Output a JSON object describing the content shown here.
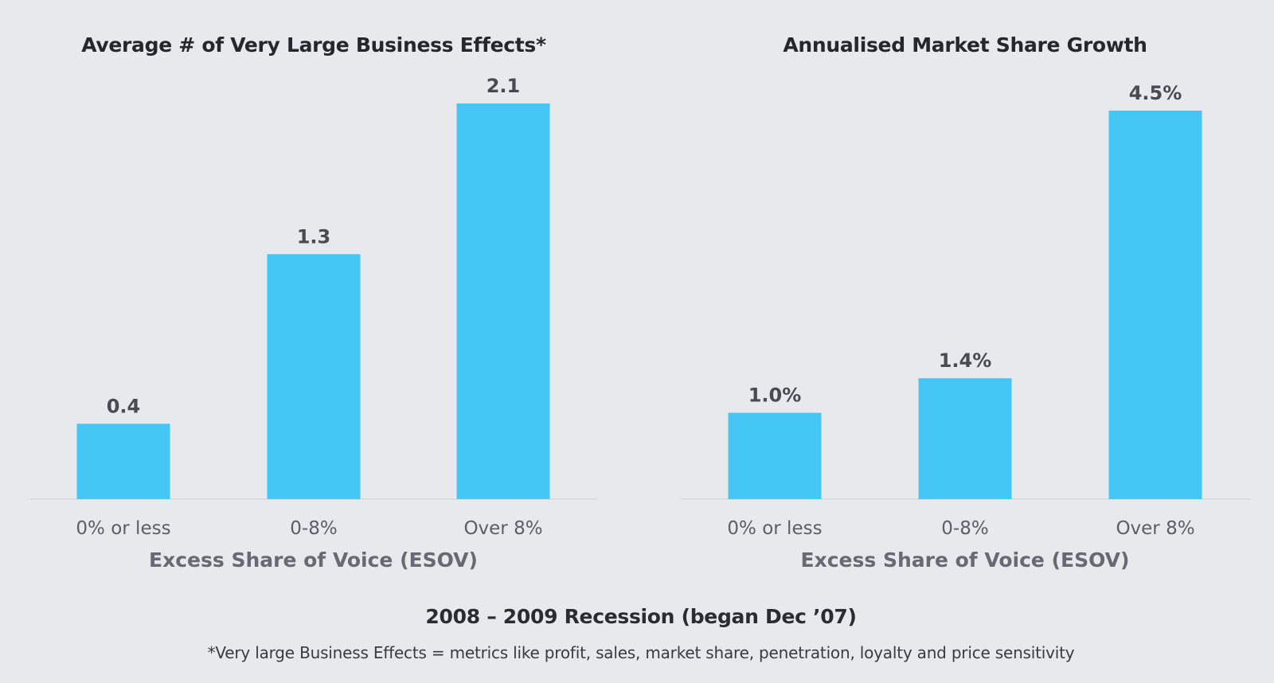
{
  "chart_data": [
    {
      "type": "bar",
      "title": "Average # of Very Large Business Effects*",
      "categories": [
        "0% or less",
        "0-8%",
        "Over 8%"
      ],
      "values": [
        0.4,
        1.3,
        2.1
      ],
      "value_labels": [
        "0.4",
        "1.3",
        "2.1"
      ],
      "xlabel": "Excess Share of Voice (ESOV)",
      "ylabel": "",
      "ylim": [
        0,
        2.1
      ],
      "grid": false,
      "bar_color": "#44c7f4"
    },
    {
      "type": "bar",
      "title": "Annualised Market Share Growth",
      "categories": [
        "0% or less",
        "0-8%",
        "Over 8%"
      ],
      "values": [
        1.0,
        1.4,
        4.5
      ],
      "value_labels": [
        "1.0%",
        "1.4%",
        "4.5%"
      ],
      "xlabel": "Excess Share of Voice (ESOV)",
      "ylabel": "",
      "ylim": [
        0,
        4.7
      ],
      "grid": false,
      "bar_color": "#44c7f4"
    }
  ],
  "subtitle": "2008 – 2009 Recession (began Dec ’07)",
  "footnote": "*Very large Business Effects = metrics like profit, sales, market share, penetration, loyalty and price sensitivity"
}
